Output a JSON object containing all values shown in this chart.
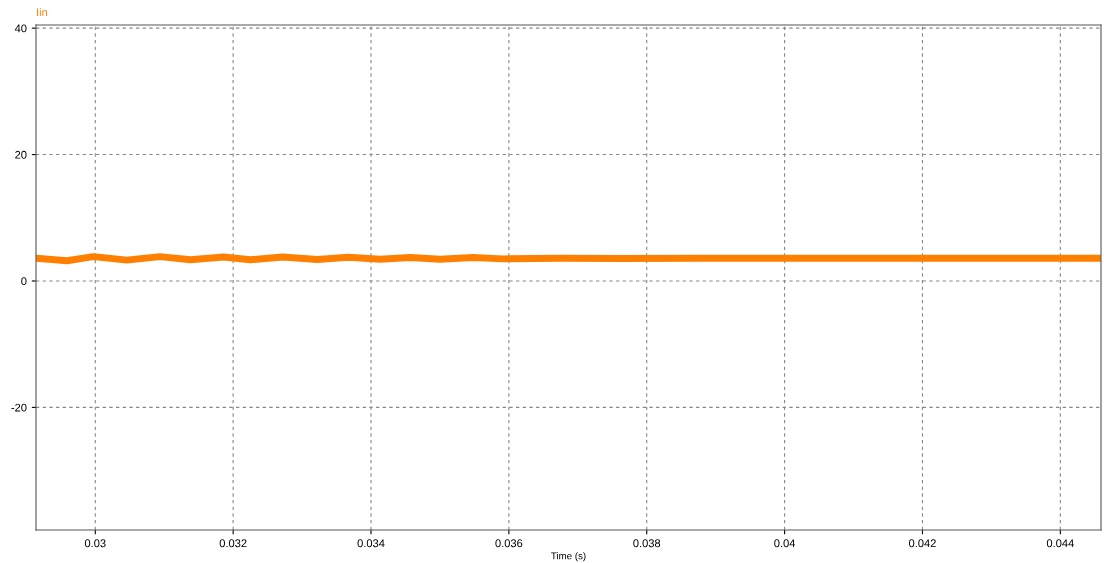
{
  "chart_data": {
    "type": "line",
    "xlabel": "Time (s)",
    "x": [
      0.02914,
      0.02959,
      0.02997,
      0.03046,
      0.03094,
      0.03138,
      0.03186,
      0.03225,
      0.03272,
      0.03322,
      0.03367,
      0.03413,
      0.03457,
      0.035,
      0.03548,
      0.03591,
      0.03674,
      0.03761,
      0.03877,
      0.04458
    ],
    "series": [
      {
        "name": "Iin",
        "color": "#ff8000",
        "values": [
          3.6,
          3.2,
          3.85,
          3.3,
          3.85,
          3.35,
          3.8,
          3.35,
          3.8,
          3.4,
          3.75,
          3.45,
          3.7,
          3.45,
          3.7,
          3.5,
          3.6,
          3.55,
          3.6,
          3.6
        ]
      }
    ],
    "xlim": [
      0.02914,
      0.04459
    ],
    "xticks": [
      0.03,
      0.032,
      0.034,
      0.036,
      0.038,
      0.04,
      0.042,
      0.044
    ],
    "ylim": [
      -39.4,
      40.5
    ],
    "yticks": [
      -20,
      0,
      20,
      40
    ],
    "grid": true,
    "line_style": "solid",
    "marker": "none"
  }
}
